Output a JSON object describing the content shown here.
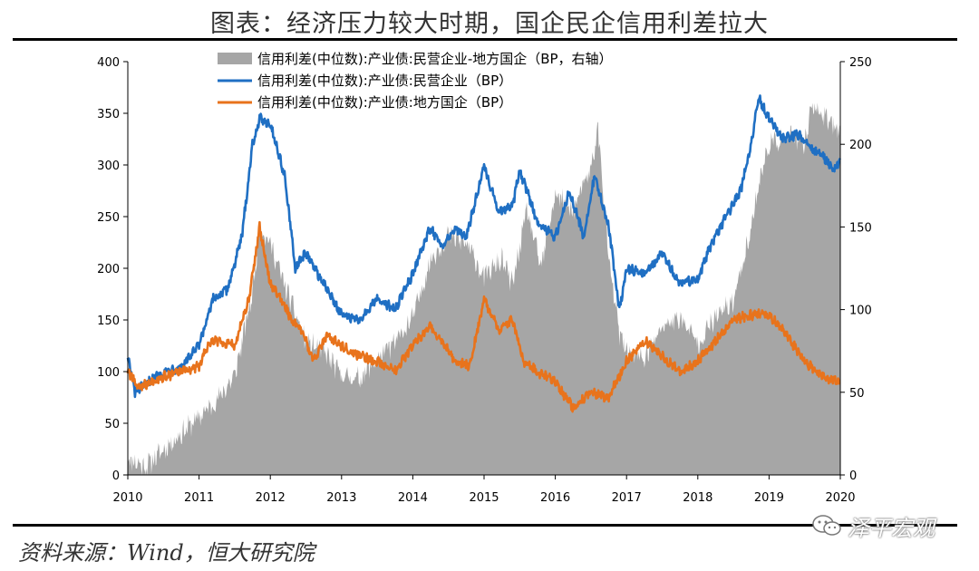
{
  "page": {
    "title": "图表：经济压力较大时期，国企民企信用利差拉大",
    "source": "资料来源：Wind，恒大研究院",
    "watermark": "泽平宏观"
  },
  "chart_data": {
    "type": "line",
    "title": "图表：经济压力较大时期，国企民企信用利差拉大",
    "x_range": [
      2010,
      2020
    ],
    "x_ticks": [
      "2010",
      "2011",
      "2012",
      "2013",
      "2014",
      "2015",
      "2016",
      "2017",
      "2018",
      "2019",
      "2020"
    ],
    "y_left": {
      "range": [
        0,
        400
      ],
      "ticks": [
        0,
        50,
        100,
        150,
        200,
        250,
        300,
        350,
        400
      ]
    },
    "y_right": {
      "range": [
        0,
        250
      ],
      "ticks": [
        0,
        50,
        100,
        150,
        200,
        250
      ]
    },
    "grid": false,
    "legend_position": "top-center",
    "colors": {
      "area": "#a6a6a6",
      "private": "#1f6fc3",
      "local": "#e8731c"
    },
    "series": [
      {
        "name": "信用利差(中位数):产业债:民营企业-地方国企（BP，右轴）",
        "type": "area",
        "axis": "right",
        "x": [
          2010.0,
          2010.25,
          2010.5,
          2010.75,
          2011.0,
          2011.25,
          2011.5,
          2011.75,
          2011.85,
          2012.0,
          2012.2,
          2012.5,
          2012.75,
          2013.0,
          2013.25,
          2013.5,
          2013.75,
          2014.0,
          2014.25,
          2014.5,
          2014.75,
          2015.0,
          2015.25,
          2015.4,
          2015.6,
          2015.8,
          2016.0,
          2016.25,
          2016.5,
          2016.6,
          2016.75,
          2016.9,
          2017.0,
          2017.25,
          2017.5,
          2017.75,
          2018.0,
          2018.25,
          2018.5,
          2018.75,
          2018.85,
          2019.0,
          2019.25,
          2019.5,
          2019.6,
          2019.8,
          2020.0
        ],
        "values": [
          10,
          5,
          15,
          25,
          35,
          45,
          60,
          110,
          150,
          140,
          115,
          80,
          75,
          60,
          58,
          70,
          80,
          95,
          130,
          145,
          140,
          120,
          130,
          115,
          160,
          125,
          170,
          160,
          185,
          210,
          130,
          85,
          75,
          70,
          90,
          95,
          80,
          95,
          105,
          150,
          175,
          200,
          205,
          200,
          225,
          215,
          210
        ]
      },
      {
        "name": "信用利差(中位数):产业债:民营企业（BP）",
        "type": "line",
        "axis": "left",
        "x": [
          2010.0,
          2010.1,
          2010.3,
          2010.5,
          2010.75,
          2011.0,
          2011.2,
          2011.4,
          2011.6,
          2011.75,
          2011.85,
          2012.0,
          2012.2,
          2012.35,
          2012.5,
          2012.75,
          2013.0,
          2013.25,
          2013.5,
          2013.75,
          2014.0,
          2014.25,
          2014.4,
          2014.6,
          2014.75,
          2015.0,
          2015.2,
          2015.4,
          2015.5,
          2015.75,
          2016.0,
          2016.2,
          2016.4,
          2016.55,
          2016.75,
          2016.9,
          2017.0,
          2017.25,
          2017.5,
          2017.75,
          2018.0,
          2018.2,
          2018.4,
          2018.6,
          2018.75,
          2018.85,
          2019.0,
          2019.2,
          2019.4,
          2019.6,
          2019.8,
          2019.9,
          2020.0
        ],
        "values": [
          115,
          80,
          90,
          100,
          105,
          125,
          170,
          180,
          230,
          320,
          345,
          340,
          290,
          200,
          215,
          185,
          155,
          150,
          170,
          160,
          195,
          240,
          220,
          240,
          230,
          300,
          255,
          260,
          295,
          245,
          230,
          275,
          230,
          290,
          240,
          160,
          200,
          195,
          215,
          185,
          190,
          225,
          250,
          275,
          320,
          365,
          345,
          325,
          330,
          315,
          305,
          295,
          305
        ]
      },
      {
        "name": "信用利差(中位数):产业债:地方国企（BP）",
        "type": "line",
        "axis": "left",
        "x": [
          2010.0,
          2010.15,
          2010.35,
          2010.5,
          2010.75,
          2011.0,
          2011.15,
          2011.3,
          2011.5,
          2011.7,
          2011.85,
          2012.0,
          2012.15,
          2012.3,
          2012.45,
          2012.6,
          2012.8,
          2013.0,
          2013.25,
          2013.5,
          2013.75,
          2014.0,
          2014.25,
          2014.45,
          2014.6,
          2014.8,
          2015.0,
          2015.2,
          2015.4,
          2015.55,
          2015.75,
          2016.0,
          2016.25,
          2016.5,
          2016.75,
          2017.0,
          2017.25,
          2017.5,
          2017.75,
          2018.0,
          2018.25,
          2018.5,
          2018.75,
          2019.0,
          2019.25,
          2019.5,
          2019.75,
          2020.0
        ],
        "values": [
          100,
          85,
          90,
          95,
          100,
          105,
          130,
          130,
          125,
          170,
          240,
          185,
          170,
          150,
          140,
          110,
          135,
          125,
          115,
          110,
          100,
          125,
          145,
          125,
          110,
          105,
          170,
          140,
          150,
          110,
          100,
          90,
          65,
          80,
          75,
          110,
          130,
          115,
          100,
          110,
          130,
          150,
          155,
          155,
          135,
          110,
          95,
          90
        ]
      }
    ]
  }
}
